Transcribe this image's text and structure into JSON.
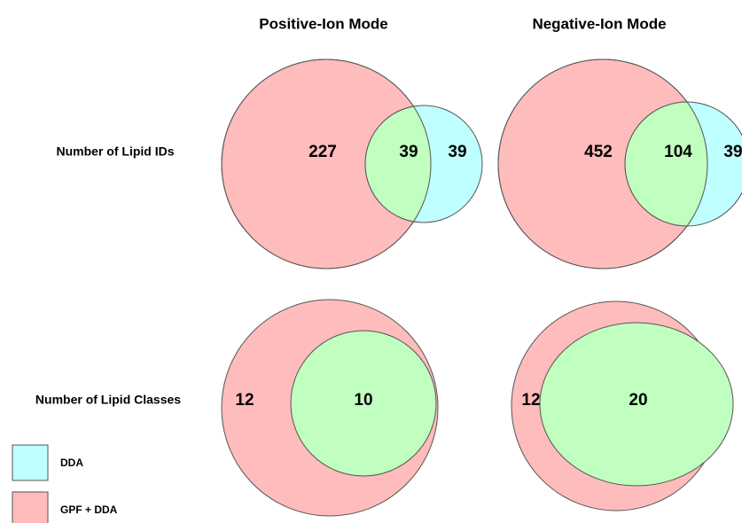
{
  "columns": [
    "Positive-Ion Mode",
    "Negative-Ion Mode"
  ],
  "rows": [
    "Number of Lipid IDs",
    "Number of Lipid Classes"
  ],
  "venns": [
    {
      "gpf_only": "227",
      "overlap": "39",
      "dda_only": "39"
    },
    {
      "gpf_only": "452",
      "overlap": "104",
      "dda_only": "39"
    },
    {
      "gpf_only": "12",
      "overlap": "10"
    },
    {
      "gpf_only": "12",
      "overlap": "20"
    }
  ],
  "legend": [
    {
      "label": "DDA",
      "color": "#bfffff"
    },
    {
      "label": "GPF + DDA",
      "color": "#ffbcbc"
    }
  ]
}
